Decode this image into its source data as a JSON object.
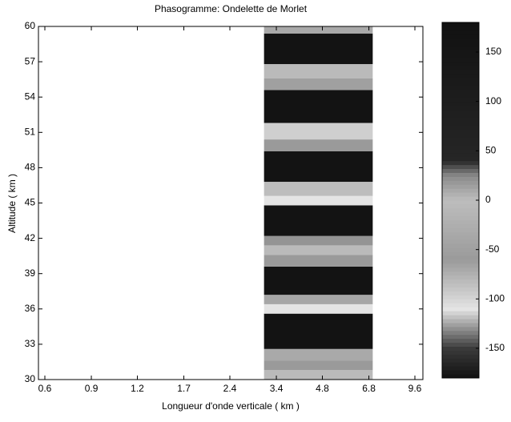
{
  "chart_data": {
    "type": "heatmap",
    "title": "Phasogramme: Ondelette de Morlet",
    "xlabel": "Longueur d'onde verticale ( km )",
    "ylabel": "Altitude ( km )",
    "xscale": "log",
    "xlim": [
      0.6,
      9.6
    ],
    "xticks": [
      0.6,
      {
        "value": 0.85,
        "label": "0.9"
      },
      1.2,
      1.7,
      2.4,
      3.4,
      4.8,
      6.8,
      9.6
    ],
    "ylim": [
      30,
      60
    ],
    "yticks": [
      30,
      33,
      36,
      39,
      42,
      45,
      48,
      51,
      54,
      57,
      60
    ],
    "x_range": [
      3.1,
      7.0
    ],
    "y_edges": [
      30,
      30.8,
      31.6,
      32.6,
      35.6,
      36.4,
      37.2,
      39.6,
      40.6,
      41.4,
      42.2,
      44.8,
      45.6,
      46.8,
      49.4,
      50.4,
      51.8,
      54.6,
      55.6,
      56.8,
      59.4,
      60
    ],
    "values": [
      -120,
      -60,
      10,
      170,
      -110,
      -40,
      170,
      -60,
      -120,
      20,
      170,
      -110,
      0,
      170,
      -60,
      -115,
      170,
      -50,
      -120,
      170,
      10
    ],
    "clim": [
      -180,
      180
    ],
    "cticks": [
      -150,
      -100,
      -50,
      0,
      50,
      100,
      150
    ],
    "colormap": [
      [
        -180,
        "#111111"
      ],
      [
        -150,
        "#3a3a3a"
      ],
      [
        -110,
        "#e4e4e4"
      ],
      [
        -60,
        "#9a9a9a"
      ],
      [
        0,
        "#bdbdbd"
      ],
      [
        25,
        "#8a8a8a"
      ],
      [
        40,
        "#262626"
      ],
      [
        180,
        "#111111"
      ]
    ]
  }
}
